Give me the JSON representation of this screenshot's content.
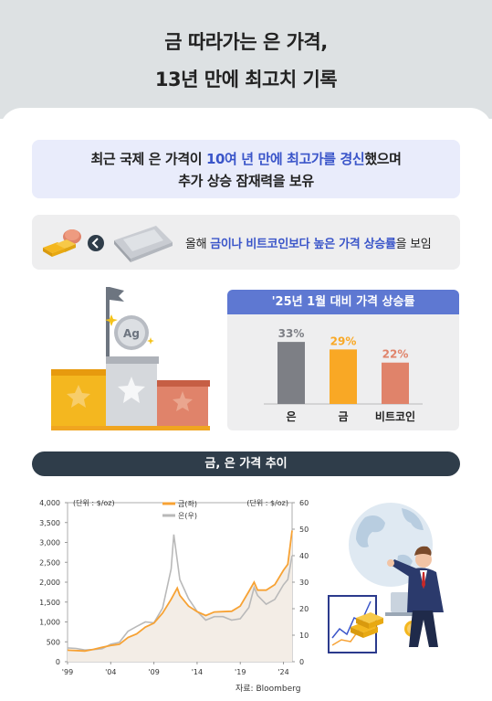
{
  "header": {
    "title_line1": "금 따라가는 은 가격,",
    "title_line2": "13년 만에 최고치 기록"
  },
  "summary": {
    "line1_pre": "최근 국제 은 가격이 ",
    "line1_hl": "10여 년 만에 최고가를 경신",
    "line1_post": "했으며",
    "line2": "추가 상승 잠재력을 보유"
  },
  "comparison": {
    "pre": "올해 ",
    "hl": "금이나 비트코인보다 높은 가격 상승률",
    "post": "을 보임",
    "ag_label": "Ag"
  },
  "bar_chart_title": "'25년 1월 대비 가격 상승률",
  "section_title": "금, 은 가격 추이",
  "source": "자료: Bloomberg",
  "colors": {
    "silver": "#7d7f85",
    "gold": "#f9a825",
    "bitcoin": "#e0836a",
    "accent_blue": "#3a55c9",
    "line_gold": "#f7a234",
    "line_silver": "#b9b9b9"
  },
  "chart_data": [
    {
      "type": "bar",
      "title": "'25년 1월 대비 가격 상승률",
      "categories": [
        "은",
        "금",
        "비트코인"
      ],
      "values": [
        33,
        29,
        22
      ],
      "labels": [
        "33%",
        "29%",
        "22%"
      ],
      "colors": [
        "#7d7f85",
        "#f9a825",
        "#e0836a"
      ],
      "ylim": [
        0,
        35
      ]
    },
    {
      "type": "line",
      "left_unit": "(단위 : $/oz)",
      "right_unit": "(단위 : $/oz)",
      "x_ticks": [
        "'99",
        "'04",
        "'09",
        "'14",
        "'19",
        "'24"
      ],
      "x_range": [
        1999,
        2025
      ],
      "y_left_ticks": [
        "0",
        "500",
        "1,000",
        "1,500",
        "2,000",
        "2,500",
        "3,000",
        "3,500",
        "4,000"
      ],
      "y_left_range": [
        0,
        4000
      ],
      "y_right_ticks": [
        "0",
        "10",
        "20",
        "30",
        "40",
        "50",
        "60"
      ],
      "y_right_range": [
        0,
        60
      ],
      "legend": "top-center",
      "series": [
        {
          "name": "금(좌)",
          "axis": "left",
          "color": "#f7a234",
          "x": [
            1999,
            2000,
            2001,
            2002,
            2003,
            2004,
            2005,
            2006,
            2007,
            2008,
            2009,
            2010,
            2011,
            2011.7,
            2012,
            2013,
            2014,
            2015,
            2016,
            2017,
            2018,
            2019,
            2020,
            2020.6,
            2021,
            2022,
            2023,
            2024,
            2024.5,
            2025
          ],
          "y": [
            290,
            280,
            270,
            310,
            360,
            410,
            440,
            610,
            700,
            870,
            970,
            1220,
            1570,
            1850,
            1670,
            1400,
            1260,
            1160,
            1250,
            1260,
            1270,
            1400,
            1770,
            2000,
            1800,
            1800,
            1940,
            2300,
            2450,
            3300
          ]
        },
        {
          "name": "은(우)",
          "axis": "right",
          "color": "#b9b9b9",
          "x": [
            1999,
            2000,
            2001,
            2002,
            2003,
            2004,
            2005,
            2006,
            2007,
            2008,
            2009,
            2010,
            2011,
            2011.3,
            2012,
            2013,
            2014,
            2015,
            2016,
            2017,
            2018,
            2019,
            2020,
            2020.6,
            2021,
            2022,
            2023,
            2024,
            2024.5,
            2025
          ],
          "y": [
            5.2,
            5.0,
            4.4,
            4.6,
            4.9,
            6.6,
            7.3,
            11.5,
            13.3,
            15.0,
            14.7,
            20.2,
            35.0,
            48.0,
            31.0,
            23.8,
            19.0,
            15.7,
            17.0,
            17.0,
            15.7,
            16.2,
            20.5,
            28.0,
            25.0,
            21.7,
            23.5,
            29.0,
            31.0,
            40.0
          ]
        }
      ]
    }
  ]
}
